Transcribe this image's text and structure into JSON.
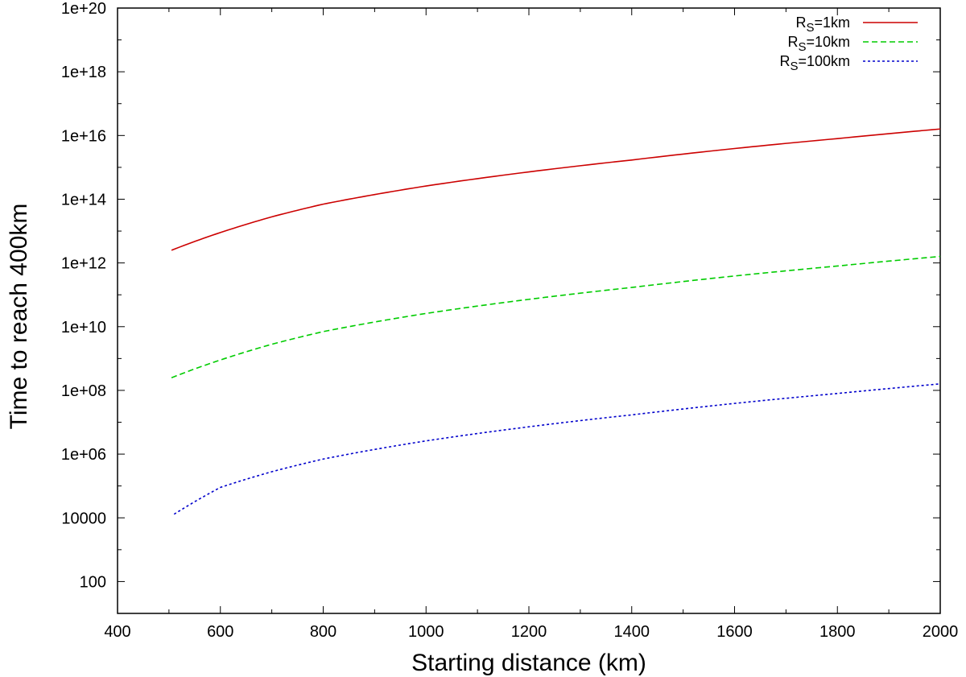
{
  "chart_data": {
    "type": "line",
    "title": "",
    "xlabel": "Starting distance (km)",
    "ylabel": "Time to reach 400km",
    "xlim": [
      400,
      2000
    ],
    "ylim": [
      10,
      1e+20
    ],
    "yscale": "log",
    "grid": false,
    "legend_position": "top-right",
    "x_ticks": [
      400,
      600,
      800,
      1000,
      1200,
      1400,
      1600,
      1800,
      2000
    ],
    "x_tick_labels": [
      "400",
      "600",
      "800",
      "1000",
      "1200",
      "1400",
      "1600",
      "1800",
      "2000"
    ],
    "y_ticks": [
      100,
      10000,
      1000000.0,
      100000000.0,
      10000000000.0,
      1000000000000.0,
      100000000000000.0,
      1e+16,
      1e+18,
      1e+20
    ],
    "y_tick_labels": [
      "100",
      "10000",
      "1e+06",
      "1e+08",
      "1e+10",
      "1e+12",
      "1e+14",
      "1e+16",
      "1e+18",
      "1e+20"
    ],
    "series": [
      {
        "name": "R_S=1km",
        "legend_main": "R",
        "legend_sub": "S",
        "legend_rest": "=1km",
        "color": "#cc0000",
        "dash": "solid",
        "x": [
          505,
          600,
          700,
          800,
          900,
          1000,
          1200,
          1400,
          1600,
          1800,
          2000
        ],
        "y": [
          2500000000000.0,
          9000000000000.0,
          28000000000000.0,
          70000000000000.0,
          140000000000000.0,
          260000000000000.0,
          720000000000000.0,
          1700000000000000.0,
          3900000000000000.0,
          8000000000000000.0,
          1.6e+16
        ]
      },
      {
        "name": "R_S=10km",
        "legend_main": "R",
        "legend_sub": "S",
        "legend_rest": "=10km",
        "color": "#00cc00",
        "dash": "dashed",
        "x": [
          505,
          600,
          700,
          800,
          900,
          1000,
          1200,
          1400,
          1600,
          1800,
          2000
        ],
        "y": [
          250000000.0,
          900000000.0,
          2800000000.0,
          7000000000.0,
          14000000000.0,
          26000000000.0,
          72000000000.0,
          170000000000.0,
          390000000000.0,
          800000000000.0,
          1600000000000.0
        ]
      },
      {
        "name": "R_S=100km",
        "legend_main": "R",
        "legend_sub": "S",
        "legend_rest": "=100km",
        "color": "#0000cc",
        "dash": "dotted",
        "x": [
          510,
          600,
          700,
          800,
          900,
          1000,
          1200,
          1400,
          1600,
          1800,
          2000
        ],
        "y": [
          13000.0,
          90000.0,
          280000.0,
          700000.0,
          1400000.0,
          2600000.0,
          7200000.0,
          17000000.0,
          39000000.0,
          80000000.0,
          160000000.0
        ]
      }
    ]
  }
}
